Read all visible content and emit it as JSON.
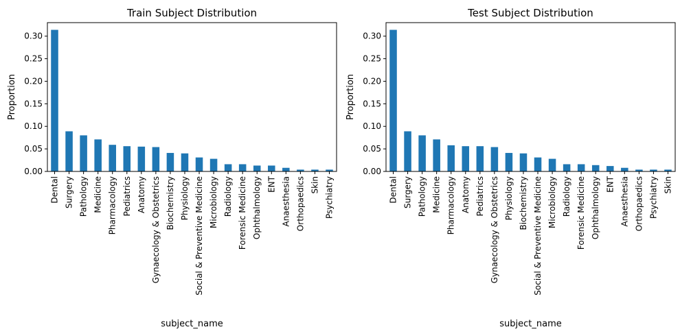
{
  "figure": {
    "bar_color": "#1f77b4",
    "axis_color": "#000000",
    "background": "#ffffff"
  },
  "chart_data": [
    {
      "type": "bar",
      "title": "Train Subject Distribution",
      "xlabel": "subject_name",
      "ylabel": "Proportion",
      "ylim": [
        0,
        0.33
      ],
      "yticks": [
        0.0,
        0.05,
        0.1,
        0.15,
        0.2,
        0.25,
        0.3
      ],
      "ytick_labels": [
        "0.00",
        "0.05",
        "0.10",
        "0.15",
        "0.20",
        "0.25",
        "0.30"
      ],
      "grid": false,
      "categories": [
        "Dental",
        "Surgery",
        "Pathology",
        "Medicine",
        "Pharmacology",
        "Pediatrics",
        "Anatomy",
        "Gynaecology & Obstetrics",
        "Biochemistry",
        "Physiology",
        "Social & Preventive Medicine",
        "Microbiology",
        "Radiology",
        "Forensic Medicine",
        "Ophthalmology",
        "ENT",
        "Anaesthesia",
        "Orthopaedics",
        "Skin",
        "Psychiatry"
      ],
      "values": [
        0.314,
        0.089,
        0.08,
        0.071,
        0.059,
        0.056,
        0.055,
        0.054,
        0.041,
        0.04,
        0.031,
        0.028,
        0.016,
        0.016,
        0.013,
        0.013,
        0.008,
        0.004,
        0.004,
        0.004
      ]
    },
    {
      "type": "bar",
      "title": "Test Subject Distribution",
      "xlabel": "subject_name",
      "ylabel": "Proportion",
      "ylim": [
        0,
        0.33
      ],
      "yticks": [
        0.0,
        0.05,
        0.1,
        0.15,
        0.2,
        0.25,
        0.3
      ],
      "ytick_labels": [
        "0.00",
        "0.05",
        "0.10",
        "0.15",
        "0.20",
        "0.25",
        "0.30"
      ],
      "grid": false,
      "categories": [
        "Dental",
        "Surgery",
        "Pathology",
        "Medicine",
        "Pharmacology",
        "Anatomy",
        "Pediatrics",
        "Gynaecology & Obstetrics",
        "Physiology",
        "Biochemistry",
        "Social & Preventive Medicine",
        "Microbiology",
        "Radiology",
        "Forensic Medicine",
        "Ophthalmology",
        "ENT",
        "Anaesthesia",
        "Orthopaedics",
        "Psychiatry",
        "Skin"
      ],
      "values": [
        0.314,
        0.089,
        0.08,
        0.071,
        0.058,
        0.056,
        0.056,
        0.054,
        0.041,
        0.04,
        0.031,
        0.028,
        0.016,
        0.016,
        0.014,
        0.012,
        0.008,
        0.004,
        0.004,
        0.004
      ]
    }
  ]
}
